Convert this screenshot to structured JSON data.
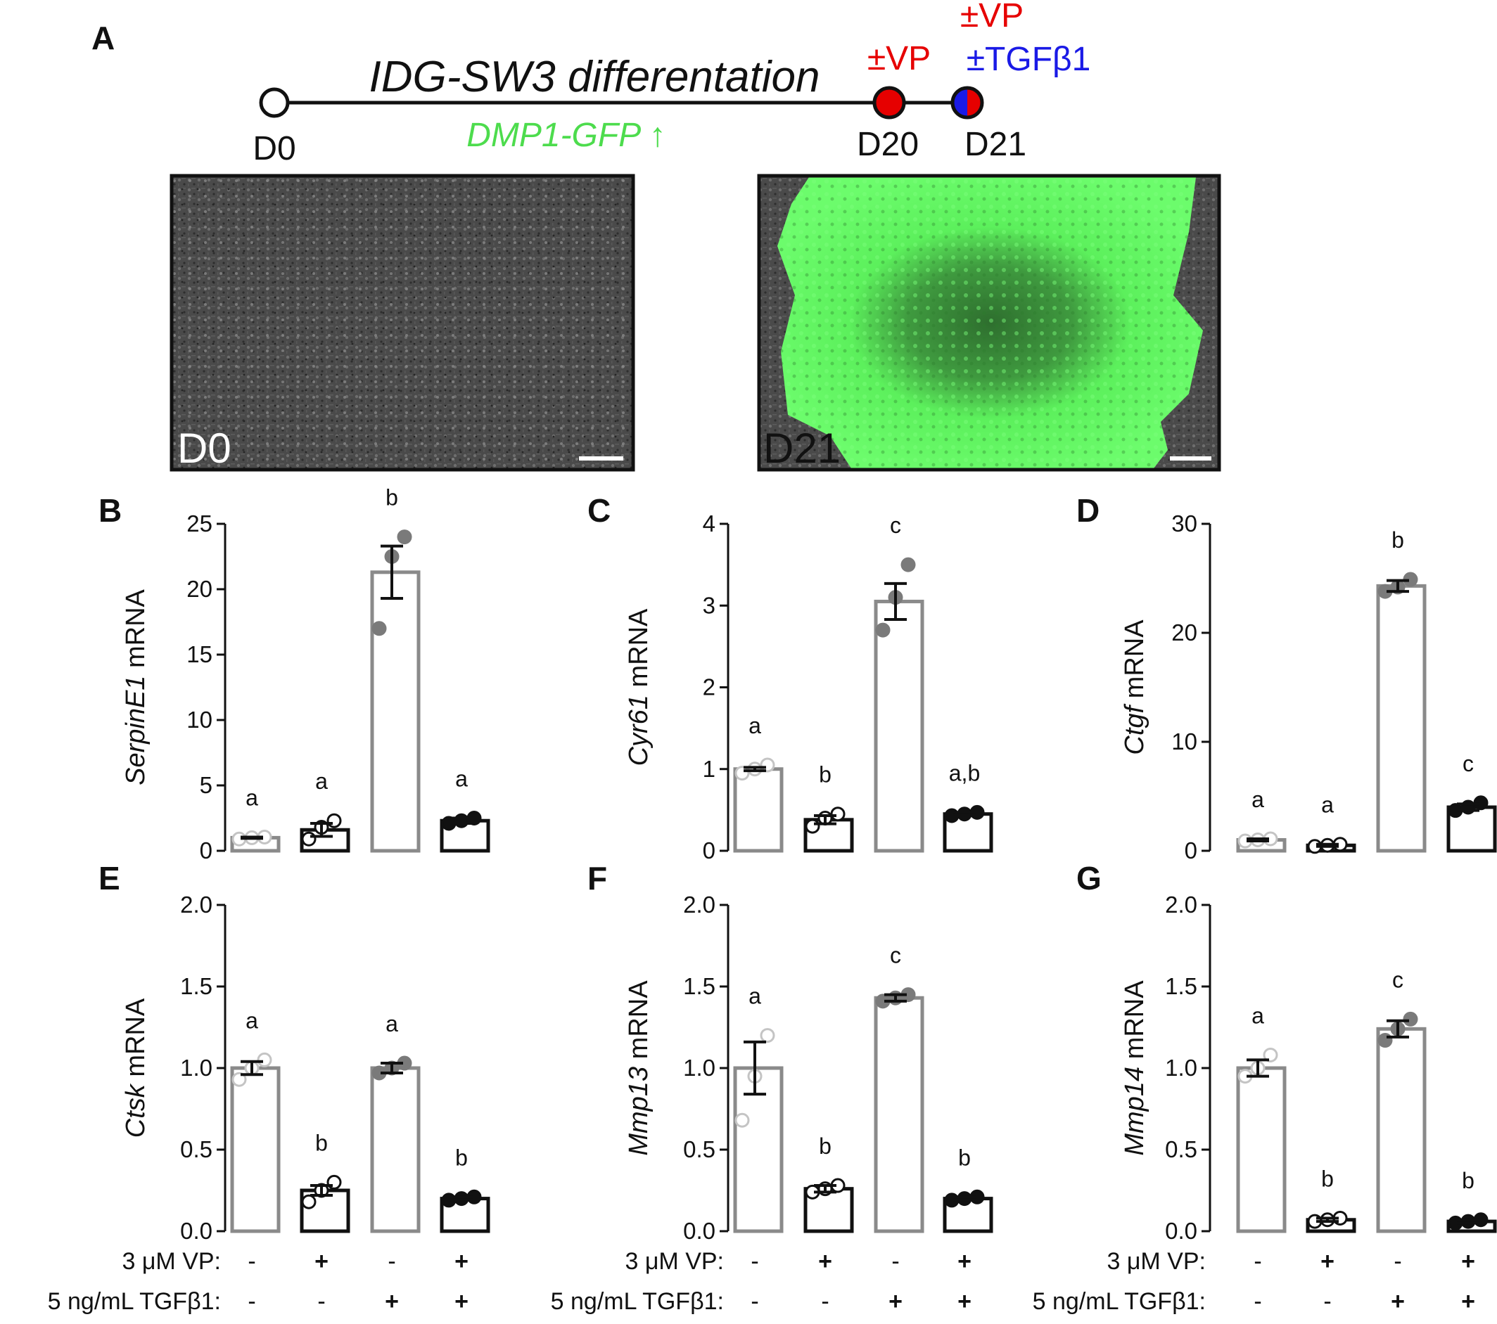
{
  "panel_a": {
    "letter": "A",
    "timeline_title": "IDG-SW3 differentation",
    "gfp_note": "DMP1-GFP ↑",
    "days": [
      "D0",
      "D20",
      "D21"
    ],
    "d20_treatment": "±VP",
    "d21_treatment_1": "±VP",
    "d21_treatment_2": "±TGFβ1",
    "image_labels": [
      "D0",
      "D21"
    ],
    "colors": {
      "vp": "#e60000",
      "tgf": "#1a1ae6",
      "gfp": "#4ddc4d"
    }
  },
  "conditions": {
    "vp_label": "3 μM VP:",
    "tgf_label": "5 ng/mL TGFβ1:",
    "vp": [
      "-",
      "+",
      "-",
      "+"
    ],
    "tgf": [
      "-",
      "-",
      "+",
      "+"
    ]
  },
  "chart_data": [
    {
      "type": "bar",
      "letter": "B",
      "gene": "SerpinE1",
      "ylabel_suffix": " mRNA",
      "ylim": [
        0,
        25
      ],
      "ticks": [
        "0",
        "5",
        "10",
        "15",
        "20",
        "25"
      ],
      "values": [
        1.0,
        1.6,
        21.3,
        2.3
      ],
      "sem": [
        0.05,
        0.5,
        2.0,
        0.2
      ],
      "points": [
        [
          0.9,
          1.0,
          1.05
        ],
        [
          0.9,
          1.8,
          2.3
        ],
        [
          17.0,
          22.5,
          24.0
        ],
        [
          2.1,
          2.3,
          2.5
        ]
      ],
      "sig": [
        "a",
        "a",
        "b",
        "a"
      ]
    },
    {
      "type": "bar",
      "letter": "C",
      "gene": "Cyr61",
      "ylabel_suffix": " mRNA",
      "ylim": [
        0,
        4
      ],
      "ticks": [
        "0",
        "1",
        "2",
        "3",
        "4"
      ],
      "values": [
        1.0,
        0.38,
        3.05,
        0.45
      ],
      "sem": [
        0.02,
        0.05,
        0.22,
        0.02
      ],
      "points": [
        [
          0.95,
          1.0,
          1.05
        ],
        [
          0.3,
          0.4,
          0.45
        ],
        [
          2.7,
          3.1,
          3.5
        ],
        [
          0.43,
          0.45,
          0.47
        ]
      ],
      "sig": [
        "a",
        "b",
        "c",
        "a,b"
      ]
    },
    {
      "type": "bar",
      "letter": "D",
      "gene": "Ctgf",
      "ylabel_suffix": " mRNA",
      "ylim": [
        0,
        30
      ],
      "ticks": [
        "0",
        "10",
        "20",
        "30"
      ],
      "values": [
        1.0,
        0.5,
        24.3,
        4.0
      ],
      "sem": [
        0.1,
        0.1,
        0.5,
        0.3
      ],
      "points": [
        [
          0.9,
          1.0,
          1.1
        ],
        [
          0.4,
          0.5,
          0.6
        ],
        [
          23.8,
          24.2,
          24.9
        ],
        [
          3.7,
          4.0,
          4.4
        ]
      ],
      "sig": [
        "a",
        "a",
        "b",
        "c"
      ]
    },
    {
      "type": "bar",
      "letter": "E",
      "gene": "Ctsk",
      "ylabel_suffix": " mRNA",
      "ylim": [
        0,
        2.0
      ],
      "ticks": [
        "0.0",
        "0.5",
        "1.0",
        "1.5",
        "2.0"
      ],
      "values": [
        1.0,
        0.25,
        1.0,
        0.2
      ],
      "sem": [
        0.04,
        0.03,
        0.03,
        0.01
      ],
      "points": [
        [
          0.93,
          1.0,
          1.05
        ],
        [
          0.18,
          0.25,
          0.3
        ],
        [
          0.97,
          1.0,
          1.03
        ],
        [
          0.19,
          0.2,
          0.21
        ]
      ],
      "sig": [
        "a",
        "b",
        "a",
        "b"
      ]
    },
    {
      "type": "bar",
      "letter": "F",
      "gene": "Mmp13",
      "ylabel_suffix": " mRNA",
      "ylim": [
        0,
        2.0
      ],
      "ticks": [
        "0.0",
        "0.5",
        "1.0",
        "1.5",
        "2.0"
      ],
      "values": [
        1.0,
        0.26,
        1.43,
        0.2
      ],
      "sem": [
        0.16,
        0.02,
        0.02,
        0.01
      ],
      "points": [
        [
          0.68,
          0.95,
          1.2
        ],
        [
          0.24,
          0.26,
          0.28
        ],
        [
          1.41,
          1.43,
          1.45
        ],
        [
          0.19,
          0.2,
          0.21
        ]
      ],
      "sig": [
        "a",
        "b",
        "c",
        "b"
      ]
    },
    {
      "type": "bar",
      "letter": "G",
      "gene": "Mmp14",
      "ylabel_suffix": " mRNA",
      "ylim": [
        0,
        2.0
      ],
      "ticks": [
        "0.0",
        "0.5",
        "1.0",
        "1.5",
        "2.0"
      ],
      "values": [
        1.0,
        0.07,
        1.24,
        0.06
      ],
      "sem": [
        0.05,
        0.01,
        0.05,
        0.01
      ],
      "points": [
        [
          0.95,
          1.0,
          1.08
        ],
        [
          0.06,
          0.07,
          0.08
        ],
        [
          1.17,
          1.24,
          1.3
        ],
        [
          0.05,
          0.06,
          0.07
        ]
      ],
      "sig": [
        "a",
        "b",
        "c",
        "b"
      ]
    }
  ],
  "styles": {
    "grey": "#8a8a8a",
    "light_point": "#c4c4c4",
    "mid_point": "#7a7a7a",
    "black": "#111111"
  }
}
